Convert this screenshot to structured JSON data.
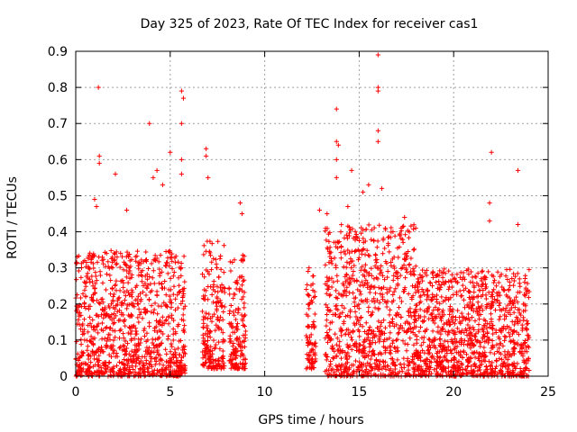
{
  "chart_data": {
    "type": "scatter",
    "title": "Day 325 of 2023, Rate Of TEC Index for receiver cas1",
    "xlabel": "GPS time / hours",
    "ylabel": "ROTI / TECUs",
    "xlim": [
      0,
      25
    ],
    "ylim": [
      0,
      0.9
    ],
    "xticks": [
      "0",
      "5",
      "10",
      "15",
      "20",
      "25"
    ],
    "yticks": [
      "0",
      "0.1",
      "0.2",
      "0.3",
      "0.4",
      "0.5",
      "0.6",
      "0.7",
      "0.8",
      "0.9"
    ],
    "grid": true,
    "marker": "+",
    "color": "#ff0000",
    "density_envelope": [
      {
        "x_start": 0.0,
        "x_end": 5.8,
        "y_low": 0.0,
        "y_high": 0.35
      },
      {
        "x_start": 6.7,
        "x_end": 7.9,
        "y_low": 0.02,
        "y_high": 0.38
      },
      {
        "x_start": 8.1,
        "x_end": 9.0,
        "y_low": 0.02,
        "y_high": 0.34
      },
      {
        "x_start": 12.2,
        "x_end": 12.7,
        "y_low": 0.02,
        "y_high": 0.3
      },
      {
        "x_start": 13.2,
        "x_end": 18.0,
        "y_low": 0.0,
        "y_high": 0.42
      },
      {
        "x_start": 18.0,
        "x_end": 24.0,
        "y_low": 0.0,
        "y_high": 0.3
      }
    ],
    "outliers": [
      {
        "x": 1.2,
        "y": 0.8
      },
      {
        "x": 3.9,
        "y": 0.7
      },
      {
        "x": 5.6,
        "y": 0.79
      },
      {
        "x": 5.7,
        "y": 0.77
      },
      {
        "x": 5.6,
        "y": 0.7
      },
      {
        "x": 1.25,
        "y": 0.61
      },
      {
        "x": 1.25,
        "y": 0.59
      },
      {
        "x": 2.1,
        "y": 0.56
      },
      {
        "x": 5.0,
        "y": 0.62
      },
      {
        "x": 5.6,
        "y": 0.6
      },
      {
        "x": 5.6,
        "y": 0.56
      },
      {
        "x": 4.3,
        "y": 0.57
      },
      {
        "x": 4.1,
        "y": 0.55
      },
      {
        "x": 6.9,
        "y": 0.63
      },
      {
        "x": 6.9,
        "y": 0.61
      },
      {
        "x": 7.0,
        "y": 0.55
      },
      {
        "x": 13.8,
        "y": 0.74
      },
      {
        "x": 13.8,
        "y": 0.65
      },
      {
        "x": 13.9,
        "y": 0.64
      },
      {
        "x": 13.8,
        "y": 0.6
      },
      {
        "x": 13.8,
        "y": 0.55
      },
      {
        "x": 16.0,
        "y": 0.89
      },
      {
        "x": 16.0,
        "y": 0.8
      },
      {
        "x": 16.0,
        "y": 0.79
      },
      {
        "x": 16.0,
        "y": 0.68
      },
      {
        "x": 16.0,
        "y": 0.65
      },
      {
        "x": 15.5,
        "y": 0.53
      },
      {
        "x": 15.2,
        "y": 0.51
      },
      {
        "x": 16.2,
        "y": 0.52
      },
      {
        "x": 14.6,
        "y": 0.57
      },
      {
        "x": 22.0,
        "y": 0.62
      },
      {
        "x": 23.4,
        "y": 0.57
      },
      {
        "x": 21.9,
        "y": 0.48
      },
      {
        "x": 21.9,
        "y": 0.43
      },
      {
        "x": 23.4,
        "y": 0.42
      },
      {
        "x": 12.9,
        "y": 0.46
      },
      {
        "x": 8.7,
        "y": 0.48
      },
      {
        "x": 8.8,
        "y": 0.45
      },
      {
        "x": 1.1,
        "y": 0.47
      },
      {
        "x": 1.0,
        "y": 0.49
      },
      {
        "x": 4.6,
        "y": 0.53
      },
      {
        "x": 2.7,
        "y": 0.46
      },
      {
        "x": 17.4,
        "y": 0.44
      },
      {
        "x": 13.3,
        "y": 0.45
      },
      {
        "x": 14.4,
        "y": 0.47
      }
    ]
  }
}
